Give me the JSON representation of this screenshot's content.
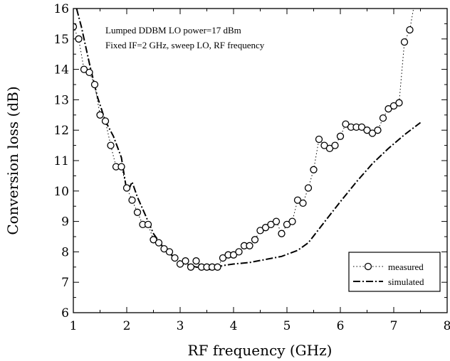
{
  "chart_data": {
    "type": "line",
    "xlabel": "RF frequency (GHz)",
    "ylabel": "Conversion loss (dB)",
    "xlim": [
      1,
      8
    ],
    "ylim": [
      6,
      16
    ],
    "xticks": [
      "1",
      "2",
      "3",
      "4",
      "5",
      "6",
      "7",
      "8"
    ],
    "yticks": [
      "6",
      "7",
      "8",
      "9",
      "10",
      "11",
      "12",
      "13",
      "14",
      "15",
      "16"
    ],
    "annotations": [
      "Lumped DDBM LO power=17 dBm",
      "Fixed IF=2 GHz, sweep LO, RF frequency"
    ],
    "legend_position": "bottom-right",
    "series": [
      {
        "name": "measured",
        "style": "dotted line with open circles",
        "x": [
          1.0,
          1.1,
          1.2,
          1.3,
          1.4,
          1.5,
          1.6,
          1.7,
          1.8,
          1.9,
          2.0,
          2.1,
          2.2,
          2.3,
          2.4,
          2.5,
          2.6,
          2.7,
          2.8,
          2.9,
          3.0,
          3.1,
          3.2,
          3.3,
          3.4,
          3.5,
          3.6,
          3.7,
          3.8,
          3.9,
          4.0,
          4.1,
          4.2,
          4.3,
          4.4,
          4.5,
          4.6,
          4.7,
          4.8,
          4.9,
          5.0,
          5.1,
          5.2,
          5.3,
          5.4,
          5.5,
          5.6,
          5.7,
          5.8,
          5.9,
          6.0,
          6.1,
          6.2,
          6.3,
          6.4,
          6.5,
          6.6,
          6.7,
          6.8,
          6.9,
          7.0,
          7.1,
          7.2,
          7.3
        ],
        "y": [
          15.4,
          15.0,
          14.0,
          13.9,
          13.5,
          12.5,
          12.3,
          11.5,
          10.8,
          10.8,
          10.1,
          9.7,
          9.3,
          8.9,
          8.9,
          8.4,
          8.3,
          8.1,
          8.0,
          7.8,
          7.6,
          7.7,
          7.5,
          7.7,
          7.5,
          7.5,
          7.5,
          7.5,
          7.8,
          7.9,
          7.9,
          8.0,
          8.2,
          8.2,
          8.4,
          8.7,
          8.8,
          8.9,
          9.0,
          8.6,
          8.9,
          9.0,
          9.7,
          9.6,
          10.1,
          10.7,
          11.7,
          11.5,
          11.4,
          11.5,
          11.8,
          12.2,
          12.1,
          12.1,
          12.1,
          12.0,
          11.9,
          12.0,
          12.4,
          12.7,
          12.8,
          12.9,
          14.9,
          15.3
        ],
        "tail_x": [
          7.3,
          7.4
        ],
        "tail_y": [
          15.3,
          16.3
        ]
      },
      {
        "name": "simulated",
        "style": "dash-dot line",
        "x": [
          1.0,
          1.15,
          1.3,
          1.45,
          1.6,
          1.75,
          1.9,
          2.0,
          2.05,
          2.1,
          2.2,
          2.35,
          2.5,
          2.7,
          2.9,
          3.1,
          3.3,
          3.5,
          3.6,
          3.7,
          3.8,
          4.0,
          4.3,
          4.6,
          4.9,
          5.2,
          5.4,
          5.6,
          5.8,
          6.0,
          6.3,
          6.6,
          6.9,
          7.2,
          7.5
        ],
        "y": [
          16.4,
          15.4,
          14.2,
          13.1,
          12.3,
          11.8,
          11.1,
          10.0,
          10.1,
          10.3,
          9.8,
          9.2,
          8.6,
          8.1,
          7.8,
          7.6,
          7.5,
          7.45,
          7.4,
          7.5,
          7.55,
          7.6,
          7.65,
          7.75,
          7.85,
          8.05,
          8.3,
          8.75,
          9.2,
          9.65,
          10.3,
          10.9,
          11.4,
          11.85,
          12.25
        ]
      }
    ]
  }
}
